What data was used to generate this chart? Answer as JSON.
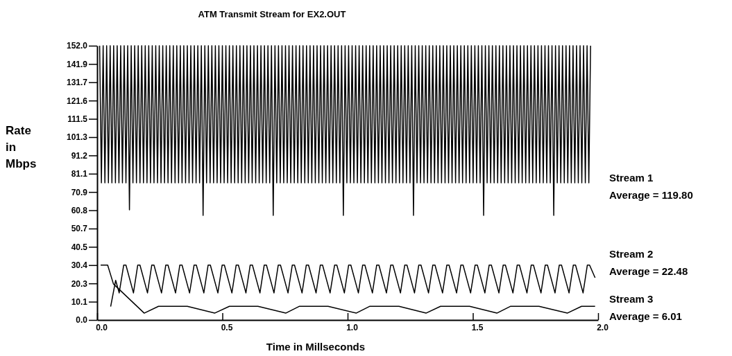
{
  "chart_data": {
    "type": "line",
    "title": "ATM Transmit Stream for EX2.OUT",
    "xlabel": "Time in Millseconds",
    "ylabel": "Rate in Mbps",
    "xlim": [
      0,
      2
    ],
    "xticks": [
      {
        "value": 0,
        "label": "0.0"
      },
      {
        "value": 0.5,
        "label": "0.5"
      },
      {
        "value": 1,
        "label": "1.0"
      },
      {
        "value": 1.5,
        "label": "1.5"
      },
      {
        "value": 2,
        "label": "2.0"
      }
    ],
    "ylim": [
      0,
      152
    ],
    "yticks": [
      {
        "value": 0,
        "label": "0.0"
      },
      {
        "value": 10.133,
        "label": "10.1"
      },
      {
        "value": 20.267,
        "label": "20.3"
      },
      {
        "value": 30.4,
        "label": "30.4"
      },
      {
        "value": 40.533,
        "label": "40.5"
      },
      {
        "value": 50.667,
        "label": "50.7"
      },
      {
        "value": 60.8,
        "label": "60.8"
      },
      {
        "value": 70.933,
        "label": "70.9"
      },
      {
        "value": 81.067,
        "label": "81.1"
      },
      {
        "value": 91.2,
        "label": "91.2"
      },
      {
        "value": 101.333,
        "label": "101.3"
      },
      {
        "value": 111.467,
        "label": "111.5"
      },
      {
        "value": 121.6,
        "label": "121.6"
      },
      {
        "value": 131.733,
        "label": "131.7"
      },
      {
        "value": 141.867,
        "label": "141.9"
      },
      {
        "value": 152,
        "label": "152.0"
      }
    ],
    "grid": false,
    "annotations": [
      "Average = 119.80",
      "Average = 22.48",
      "Average = 6.01"
    ],
    "series": [
      {
        "name": "Stream 1",
        "color": "#000000",
        "x": [
          0.01,
          0.017,
          0.024,
          0.031,
          0.038,
          0.045,
          0.052,
          0.059,
          0.066,
          0.073,
          0.08,
          0.087,
          0.094,
          0.101,
          0.108,
          0.115,
          0.122,
          0.129,
          0.136,
          0.143,
          0.15,
          0.157,
          0.164,
          0.171,
          0.178,
          0.185,
          0.192,
          0.199,
          0.206,
          0.213,
          0.22,
          0.227,
          0.234,
          0.241,
          0.248,
          0.255,
          0.262,
          0.269,
          0.276,
          0.283,
          0.29,
          0.297,
          0.304,
          0.311,
          0.318,
          0.325,
          0.332,
          0.339,
          0.346,
          0.353,
          0.36,
          0.367,
          0.374,
          0.381,
          0.388,
          0.395,
          0.402,
          0.409,
          0.416,
          0.423,
          0.43,
          0.437,
          0.444,
          0.451,
          0.458,
          0.465,
          0.472,
          0.479,
          0.486,
          0.493,
          0.5,
          0.507,
          0.514,
          0.521,
          0.528,
          0.535,
          0.542,
          0.549,
          0.556,
          0.563,
          0.57,
          0.577,
          0.584,
          0.591,
          0.598,
          0.605,
          0.612,
          0.619,
          0.626,
          0.633,
          0.64,
          0.647,
          0.654,
          0.661,
          0.668,
          0.675,
          0.682,
          0.689,
          0.696,
          0.703,
          0.71,
          0.717,
          0.724,
          0.731,
          0.738,
          0.745,
          0.752,
          0.759,
          0.766,
          0.773,
          0.78,
          0.787,
          0.794,
          0.801,
          0.808,
          0.815,
          0.822,
          0.829,
          0.836,
          0.843,
          0.85,
          0.857,
          0.864,
          0.871,
          0.878,
          0.885,
          0.892,
          0.899,
          0.906,
          0.913,
          0.92,
          0.927,
          0.934,
          0.941,
          0.948,
          0.955,
          0.962,
          0.969,
          0.976,
          0.983,
          0.99,
          0.997,
          1.004,
          1.011,
          1.018,
          1.025,
          1.032,
          1.039,
          1.046,
          1.053,
          1.06,
          1.067,
          1.074,
          1.081,
          1.088,
          1.095,
          1.102,
          1.109,
          1.116,
          1.123,
          1.13,
          1.137,
          1.144,
          1.151,
          1.158,
          1.165,
          1.172,
          1.179,
          1.186,
          1.193,
          1.2,
          1.207,
          1.214,
          1.221,
          1.228,
          1.235,
          1.242,
          1.249,
          1.256,
          1.263,
          1.27,
          1.277,
          1.284,
          1.291,
          1.298,
          1.305,
          1.312,
          1.319,
          1.326,
          1.333,
          1.34,
          1.347,
          1.354,
          1.361,
          1.368,
          1.375,
          1.382,
          1.389,
          1.396,
          1.403,
          1.41,
          1.417,
          1.424,
          1.431,
          1.438,
          1.445,
          1.452,
          1.459,
          1.466,
          1.473,
          1.48,
          1.487,
          1.494,
          1.501,
          1.508,
          1.515,
          1.522,
          1.529,
          1.536,
          1.543,
          1.55,
          1.557,
          1.564,
          1.571,
          1.578,
          1.585,
          1.592,
          1.599,
          1.606,
          1.613,
          1.62,
          1.627,
          1.634,
          1.641,
          1.648,
          1.655,
          1.662,
          1.669,
          1.676,
          1.683,
          1.69,
          1.697,
          1.704,
          1.711,
          1.718,
          1.725,
          1.732,
          1.739,
          1.746,
          1.753,
          1.76,
          1.767,
          1.774,
          1.781,
          1.788,
          1.795,
          1.802,
          1.809,
          1.816,
          1.823,
          1.83,
          1.837,
          1.844,
          1.851,
          1.858,
          1.865,
          1.872,
          1.879,
          1.886,
          1.893,
          1.9,
          1.907,
          1.914,
          1.921,
          1.928,
          1.935,
          1.942,
          1.949,
          1.956,
          1.963,
          1.97
        ],
        "values": [
          152,
          76,
          152,
          76,
          152,
          76,
          152,
          76,
          152,
          76,
          152,
          76,
          152,
          76,
          152,
          76,
          152,
          61,
          152,
          76,
          152,
          76,
          152,
          76,
          152,
          76,
          152,
          76,
          152,
          76,
          152,
          76,
          152,
          76,
          152,
          76,
          152,
          76,
          152,
          76,
          152,
          76,
          152,
          76,
          152,
          76,
          152,
          76,
          152,
          76,
          152,
          76,
          152,
          76,
          152,
          76,
          152,
          76,
          152,
          58,
          152,
          76,
          152,
          76,
          152,
          76,
          152,
          76,
          152,
          76,
          152,
          76,
          152,
          76,
          152,
          76,
          152,
          76,
          152,
          76,
          152,
          76,
          152,
          76,
          152,
          76,
          152,
          76,
          152,
          76,
          152,
          76,
          152,
          76,
          152,
          76,
          152,
          76,
          152,
          58,
          152,
          76,
          152,
          76,
          152,
          76,
          152,
          76,
          152,
          76,
          152,
          76,
          152,
          76,
          152,
          76,
          152,
          76,
          152,
          76,
          152,
          76,
          152,
          76,
          152,
          76,
          152,
          76,
          152,
          76,
          152,
          76,
          152,
          76,
          152,
          76,
          152,
          76,
          152,
          58,
          152,
          76,
          152,
          76,
          152,
          76,
          152,
          76,
          152,
          76,
          152,
          76,
          152,
          76,
          152,
          76,
          152,
          76,
          152,
          76,
          152,
          76,
          152,
          76,
          152,
          76,
          152,
          76,
          152,
          76,
          152,
          76,
          152,
          76,
          152,
          76,
          152,
          76,
          152,
          58,
          152,
          76,
          152,
          76,
          152,
          76,
          152,
          76,
          152,
          76,
          152,
          76,
          152,
          76,
          152,
          76,
          152,
          76,
          152,
          76,
          152,
          76,
          152,
          76,
          152,
          76,
          152,
          76,
          152,
          76,
          152,
          76,
          152,
          76,
          152,
          76,
          152,
          76,
          152,
          58,
          152,
          76,
          152,
          76,
          152,
          76,
          152,
          76,
          152,
          76,
          152,
          76,
          152,
          76,
          152,
          76,
          152,
          76,
          152,
          76,
          152,
          76,
          152,
          76,
          152,
          76,
          152,
          76,
          152,
          76,
          152,
          76,
          152,
          76,
          152,
          76,
          152,
          76,
          152,
          58,
          152,
          76,
          152,
          76,
          152,
          76,
          152,
          76,
          152,
          76,
          152,
          76,
          152,
          76,
          152,
          76,
          152,
          76,
          152,
          76,
          152
        ]
      },
      {
        "name": "Stream 2",
        "color": "#000000",
        "x": [
          0.054,
          0.074,
          0.088,
          0.106,
          0.115,
          0.145,
          0.162,
          0.171,
          0.201,
          0.218,
          0.227,
          0.257,
          0.274,
          0.283,
          0.313,
          0.33,
          0.339,
          0.369,
          0.387,
          0.396,
          0.426,
          0.443,
          0.452,
          0.482,
          0.499,
          0.508,
          0.538,
          0.555,
          0.564,
          0.594,
          0.611,
          0.62,
          0.65,
          0.667,
          0.676,
          0.706,
          0.723,
          0.732,
          0.762,
          0.779,
          0.788,
          0.818,
          0.835,
          0.844,
          0.874,
          0.891,
          0.9,
          0.93,
          0.948,
          0.957,
          0.987,
          1.004,
          1.013,
          1.043,
          1.06,
          1.069,
          1.099,
          1.116,
          1.125,
          1.155,
          1.172,
          1.181,
          1.211,
          1.228,
          1.237,
          1.267,
          1.284,
          1.293,
          1.323,
          1.34,
          1.349,
          1.379,
          1.396,
          1.405,
          1.435,
          1.452,
          1.461,
          1.491,
          1.509,
          1.518,
          1.548,
          1.565,
          1.574,
          1.604,
          1.621,
          1.63,
          1.66,
          1.677,
          1.686,
          1.716,
          1.733,
          1.742,
          1.772,
          1.789,
          1.798,
          1.828,
          1.845,
          1.854,
          1.884,
          1.901,
          1.91,
          1.94,
          1.957,
          1.966,
          1.988
        ],
        "values": [
          7.4,
          22,
          15,
          30.4,
          30.4,
          15,
          30.4,
          30.4,
          15,
          30.4,
          30.4,
          15,
          30.4,
          30.4,
          15,
          30.4,
          30.4,
          15,
          30.4,
          30.4,
          15,
          30.4,
          30.4,
          15,
          30.4,
          30.4,
          15,
          30.4,
          30.4,
          15,
          30.4,
          30.4,
          15,
          30.4,
          30.4,
          15,
          30.4,
          30.4,
          15,
          30.4,
          30.4,
          15,
          30.4,
          30.4,
          15,
          30.4,
          30.4,
          15,
          30.4,
          30.4,
          15,
          30.4,
          30.4,
          15,
          30.4,
          30.4,
          15,
          30.4,
          30.4,
          15,
          30.4,
          30.4,
          15,
          30.4,
          30.4,
          15,
          30.4,
          30.4,
          15,
          30.4,
          30.4,
          15,
          30.4,
          30.4,
          15,
          30.4,
          30.4,
          15,
          30.4,
          30.4,
          15,
          30.4,
          30.4,
          15,
          30.4,
          30.4,
          15,
          30.4,
          30.4,
          15,
          30.4,
          30.4,
          15,
          30.4,
          30.4,
          15,
          30.4,
          30.4,
          15,
          30.4,
          30.4,
          15,
          30.4,
          30.4,
          23.4
        ]
      },
      {
        "name": "Stream 3",
        "color": "#000000",
        "x": [
          0.014,
          0.042,
          0.065,
          0.188,
          0.245,
          0.36,
          0.469,
          0.528,
          0.642,
          0.753,
          0.808,
          0.922,
          1.034,
          1.089,
          1.205,
          1.313,
          1.371,
          1.487,
          1.596,
          1.651,
          1.764,
          1.877,
          1.934,
          1.988
        ],
        "values": [
          30.4,
          30.4,
          20,
          3.8,
          7.6,
          7.6,
          3.8,
          7.6,
          7.6,
          3.8,
          7.6,
          7.6,
          3.8,
          7.6,
          7.6,
          3.8,
          7.6,
          7.6,
          3.8,
          7.6,
          7.6,
          3.8,
          7.6,
          7.6
        ]
      }
    ]
  }
}
